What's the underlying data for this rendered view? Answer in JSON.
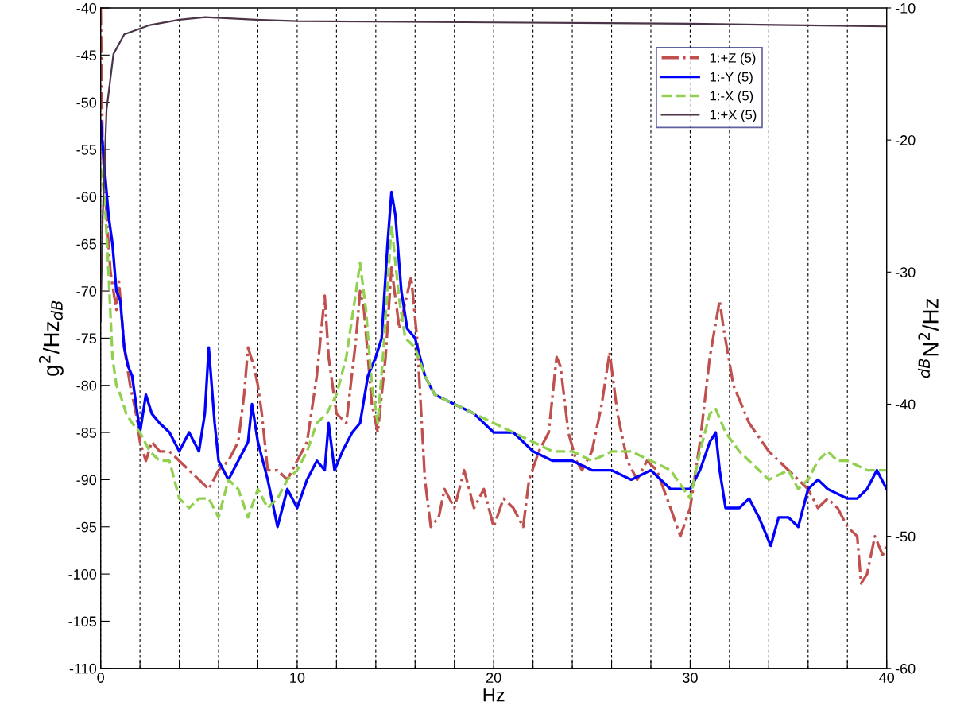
{
  "chart_data": {
    "type": "line",
    "xlabel": "Hz",
    "ylabel": "g$^{2}$/Hz$_{dB}$",
    "y2label": "$^{dB}$N$^{2}$/Hz",
    "xlim": [
      0,
      40
    ],
    "xticks": [
      0,
      {
        "value": 2,
        "label": null
      },
      {
        "value": 4,
        "label": null
      },
      {
        "value": 6,
        "label": null
      },
      {
        "value": 8,
        "label": null
      },
      10,
      {
        "value": 12,
        "label": null
      },
      {
        "value": 14,
        "label": null
      },
      {
        "value": 16,
        "label": null
      },
      {
        "value": 18,
        "label": null
      },
      20,
      {
        "value": 22,
        "label": null
      },
      {
        "value": 24,
        "label": null
      },
      {
        "value": 26,
        "label": null
      },
      {
        "value": 28,
        "label": null
      },
      30,
      {
        "value": 32,
        "label": null
      },
      {
        "value": 34,
        "label": null
      },
      {
        "value": 36,
        "label": null
      },
      {
        "value": 38,
        "label": null
      },
      40
    ],
    "ylim": [
      -110,
      -40
    ],
    "yticks": [
      -110,
      -105,
      -100,
      -95,
      -90,
      -85,
      -80,
      -75,
      -70,
      -65,
      -60,
      -55,
      -50,
      -45,
      -40
    ],
    "y2lim": [
      -60,
      -10
    ],
    "y2ticks": [
      -60,
      -50,
      -40,
      -30,
      -20,
      -10
    ],
    "grid": "x",
    "legend": "top right",
    "series": [
      {
        "name": "1:+Z (5)",
        "color": "#c0504d",
        "line_style": "dashdot",
        "x": [
          0,
          0.1,
          0.3,
          0.5,
          0.8,
          0.93,
          1.2,
          1.5,
          1.8,
          2.0,
          2.3,
          2.6,
          3,
          3.5,
          4,
          4.5,
          5,
          5.5,
          6,
          6.5,
          7,
          7.3,
          7.5,
          7.8,
          8,
          8.2,
          8.5,
          9,
          9.5,
          10,
          10.5,
          11,
          11.4,
          11.6,
          12,
          12.5,
          13,
          13.2,
          13.4,
          13.8,
          14.1,
          14.5,
          14.8,
          15.2,
          15.8,
          16.1,
          16.5,
          16.8,
          17.2,
          17.5,
          18,
          18.5,
          19,
          19.5,
          20,
          20.5,
          21,
          21.5,
          21.8,
          22.3,
          22.8,
          23.2,
          23.4,
          23.8,
          24.2,
          24.5,
          25,
          25.5,
          25.9,
          26.3,
          26.8,
          27.3,
          27.8,
          28.3,
          29,
          29.5,
          30,
          30.5,
          31,
          31.5,
          31.7,
          32.2,
          33,
          34,
          35,
          35.5,
          36,
          36.5,
          37,
          37.5,
          38,
          38.5,
          38.7,
          39,
          39.4,
          39.8,
          40
        ],
        "values": [
          -40,
          -55,
          -62,
          -68,
          -72,
          -69,
          -76,
          -80,
          -83,
          -86,
          -88,
          -86,
          -87,
          -87,
          -88,
          -89,
          -90,
          -91,
          -89,
          -88,
          -86,
          -81,
          -76,
          -78,
          -80,
          -83,
          -89,
          -89,
          -90,
          -88,
          -86,
          -79,
          -70.5,
          -77,
          -83,
          -84,
          -75,
          -70,
          -72,
          -82,
          -85,
          -77,
          -67.5,
          -74,
          -68.5,
          -75,
          -90,
          -95,
          -94,
          -91,
          -93,
          -89,
          -93,
          -91,
          -95,
          -92,
          -93,
          -95,
          -90,
          -87,
          -85,
          -77,
          -78,
          -85,
          -88,
          -89,
          -87,
          -82,
          -76.5,
          -83,
          -88,
          -90,
          -88,
          -89,
          -93,
          -96,
          -93,
          -86,
          -77,
          -71,
          -74,
          -80,
          -84,
          -87,
          -89,
          -90,
          -91,
          -93,
          -92,
          -93,
          -95,
          -96,
          -101,
          -100,
          -96,
          -98,
          -97
        ]
      },
      {
        "name": "1:-Y (5)",
        "color": "#0000ff",
        "line_style": "solid",
        "x": [
          0,
          0.2,
          0.4,
          0.6,
          0.8,
          1.0,
          1.2,
          1.4,
          1.6,
          1.8,
          2,
          2.3,
          2.6,
          3,
          3.5,
          4,
          4.5,
          5,
          5.3,
          5.5,
          5.8,
          6,
          6.5,
          7,
          7.5,
          7.7,
          8,
          8.5,
          9,
          9.5,
          10,
          10.5,
          11,
          11.4,
          11.6,
          11.9,
          12.3,
          12.8,
          13.2,
          13.6,
          14,
          14.3,
          14.6,
          14.8,
          15.0,
          15.3,
          15.6,
          16,
          16.5,
          17,
          18,
          19,
          20,
          21,
          22,
          23,
          24,
          25,
          26,
          27,
          28,
          29,
          30,
          30.5,
          31,
          31.3,
          31.5,
          31.8,
          32.5,
          33,
          33.5,
          34.1,
          34.5,
          35,
          35.5,
          36,
          36.5,
          37,
          38,
          38.5,
          39,
          39.5,
          40
        ],
        "values": [
          -52,
          -57,
          -62,
          -65,
          -70,
          -71,
          -76,
          -78,
          -79,
          -82,
          -85,
          -81,
          -83,
          -84,
          -85,
          -87,
          -85,
          -87,
          -83,
          -76,
          -84,
          -88,
          -90,
          -88,
          -86,
          -82,
          -86,
          -90,
          -95,
          -91,
          -93,
          -90,
          -88,
          -89,
          -84,
          -89,
          -87,
          -85,
          -84,
          -79,
          -77,
          -75,
          -65,
          -59.5,
          -62,
          -70,
          -74,
          -75,
          -79,
          -81,
          -82,
          -83,
          -85,
          -85,
          -87,
          -88,
          -88,
          -89,
          -89,
          -90,
          -89,
          -91,
          -91,
          -89,
          -86,
          -85,
          -89,
          -93,
          -93,
          -92,
          -94,
          -97,
          -94,
          -94,
          -95,
          -91,
          -90,
          -91,
          -92,
          -92,
          -91,
          -89,
          -91
        ]
      },
      {
        "name": "1:-X (5)",
        "color": "#92d050",
        "line_style": "dashed",
        "x": [
          0,
          0.2,
          0.4,
          0.6,
          0.8,
          1.0,
          1.3,
          1.6,
          2,
          2.5,
          3,
          3.5,
          4,
          4.5,
          5,
          5.5,
          6,
          6.5,
          7,
          7.5,
          8,
          8.5,
          9,
          9.5,
          10,
          10.5,
          11,
          11.5,
          12,
          12.5,
          13,
          13.2,
          13.5,
          13.8,
          14.1,
          14.4,
          14.8,
          15.2,
          15.5,
          16,
          16.5,
          17,
          18,
          19,
          20,
          21,
          22,
          23,
          24,
          25,
          26,
          27,
          28,
          29,
          30,
          30.5,
          31,
          31.3,
          31.8,
          32.5,
          33,
          34,
          35,
          35.5,
          36,
          36.5,
          37,
          37.5,
          38,
          39,
          40
        ],
        "values": [
          -57,
          -60,
          -68,
          -77,
          -80,
          -81,
          -83,
          -84,
          -85,
          -87,
          -88,
          -88,
          -92,
          -93,
          -92,
          -92,
          -94,
          -90,
          -91,
          -94,
          -91,
          -93,
          -92,
          -90,
          -89,
          -87,
          -84,
          -83,
          -81,
          -77,
          -70,
          -67,
          -72,
          -80,
          -84,
          -76,
          -63,
          -71,
          -75,
          -76,
          -79,
          -81,
          -82,
          -83,
          -84,
          -85,
          -86,
          -87,
          -87,
          -88,
          -87,
          -87,
          -88,
          -89,
          -92,
          -87,
          -83,
          -82.5,
          -85,
          -87,
          -88,
          -90,
          -89,
          -91,
          -90,
          -88,
          -87,
          -88,
          -88,
          -89,
          -89
        ]
      },
      {
        "name": "1:+X (5)",
        "color": "#4b3447",
        "line_style": "solid",
        "axis": "y2",
        "x": [
          0,
          0.1,
          0.3,
          0.65,
          1.2,
          2.5,
          4,
          5.3,
          7.9,
          10,
          20,
          30,
          35,
          40
        ],
        "values": [
          -33.7,
          -25.9,
          -17.7,
          -13.5,
          -12.0,
          -11.3,
          -10.9,
          -10.7,
          -10.9,
          -11.0,
          -11.1,
          -11.2,
          -11.3,
          -11.4
        ]
      }
    ]
  }
}
